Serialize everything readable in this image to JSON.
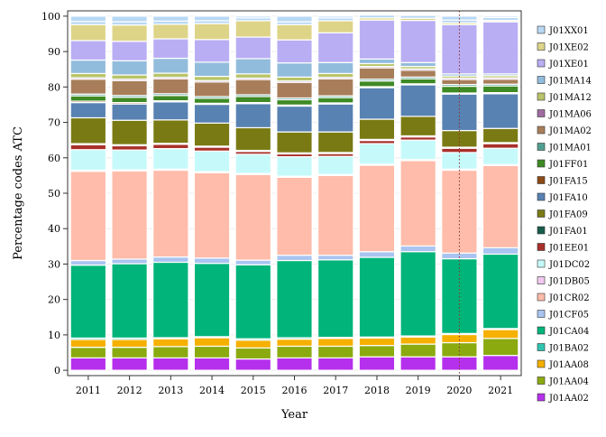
{
  "chart_data": {
    "type": "bar",
    "stacked": true,
    "xlabel": "Year",
    "ylabel": "Percentage codes ATC",
    "ylim": [
      0,
      100
    ],
    "yticks": [
      0,
      10,
      20,
      30,
      40,
      50,
      60,
      70,
      80,
      90,
      100
    ],
    "categories": [
      "2011",
      "2012",
      "2013",
      "2014",
      "2015",
      "2016",
      "2017",
      "2018",
      "2019",
      "2020",
      "2021"
    ],
    "reference_line": {
      "x": "2020",
      "style": "dotted",
      "color": "#8b2e2e"
    },
    "legend_position": "right",
    "series": [
      {
        "name": "J01AA02",
        "color": "#b530ec",
        "values": [
          3.5,
          3.5,
          3.5,
          3.5,
          3.2,
          3.5,
          3.5,
          3.8,
          3.8,
          3.8,
          4.2
        ]
      },
      {
        "name": "J01AA04",
        "color": "#8aaa10",
        "values": [
          3.0,
          3.0,
          3.2,
          3.3,
          3.1,
          3.3,
          3.3,
          3.2,
          3.6,
          4.0,
          4.8
        ]
      },
      {
        "name": "J01AA08",
        "color": "#f5b000",
        "values": [
          2.2,
          2.2,
          2.2,
          2.4,
          2.2,
          2.0,
          2.2,
          2.1,
          2.0,
          2.3,
          2.5
        ]
      },
      {
        "name": "J01BA02",
        "color": "#2ec4b0",
        "values": [
          0.4,
          0.4,
          0.3,
          0.3,
          0.4,
          0.4,
          0.3,
          0.3,
          0.3,
          0.3,
          0.3
        ]
      },
      {
        "name": "J01CA04",
        "color": "#00b47a",
        "values": [
          20.6,
          21.0,
          21.3,
          20.7,
          20.9,
          21.8,
          21.9,
          22.5,
          23.8,
          21.1,
          21.0
        ]
      },
      {
        "name": "J01CF05",
        "color": "#a9c4f0",
        "values": [
          1.3,
          1.3,
          1.5,
          1.5,
          1.3,
          1.5,
          1.3,
          1.6,
          1.6,
          1.6,
          1.8
        ]
      },
      {
        "name": "J01CR02",
        "color": "#ffbcaa",
        "values": [
          25.2,
          24.9,
          24.5,
          24.1,
          24.2,
          22.0,
          22.5,
          24.4,
          24.1,
          23.4,
          23.2
        ]
      },
      {
        "name": "J01DB05",
        "color": "#f0c8f0",
        "values": [
          0.3,
          0.3,
          0.3,
          0.3,
          0.3,
          0.3,
          0.3,
          0.3,
          0.3,
          0.3,
          0.3
        ]
      },
      {
        "name": "J01DC02",
        "color": "#c6fafa",
        "values": [
          5.8,
          5.6,
          5.8,
          5.8,
          5.4,
          5.5,
          5.1,
          5.8,
          5.5,
          4.7,
          4.6
        ]
      },
      {
        "name": "J01EE01",
        "color": "#a8302a",
        "values": [
          1.4,
          1.2,
          1.2,
          1.1,
          0.8,
          0.8,
          0.8,
          0.9,
          0.9,
          1.2,
          1.3
        ]
      },
      {
        "name": "J01FA01",
        "color": "#185c4c",
        "values": [
          0.3,
          0.3,
          0.3,
          0.3,
          0.3,
          0.3,
          0.3,
          0.3,
          0.3,
          0.3,
          0.3
        ]
      },
      {
        "name": "J01FA09",
        "color": "#7a7a14",
        "values": [
          7.3,
          6.9,
          6.6,
          6.5,
          6.4,
          5.9,
          5.8,
          5.7,
          5.5,
          4.7,
          4.0
        ]
      },
      {
        "name": "J01FA10",
        "color": "#5882b2",
        "values": [
          4.3,
          4.6,
          5.1,
          5.3,
          6.8,
          7.3,
          7.9,
          8.9,
          8.9,
          10.3,
          9.8
        ]
      },
      {
        "name": "J01FA15",
        "color": "#8c4a14",
        "values": [
          0.4,
          0.4,
          0.3,
          0.3,
          0.3,
          0.3,
          0.3,
          0.3,
          0.3,
          0.3,
          0.3
        ]
      },
      {
        "name": "J01FF01",
        "color": "#3e8a24",
        "values": [
          1.5,
          1.5,
          1.5,
          1.4,
          1.7,
          1.5,
          1.5,
          1.6,
          1.4,
          1.9,
          1.9
        ]
      },
      {
        "name": "J01MA01",
        "color": "#50a092",
        "values": [
          0.5,
          0.5,
          0.5,
          0.5,
          0.5,
          0.5,
          0.5,
          0.5,
          0.5,
          0.5,
          0.5
        ]
      },
      {
        "name": "J01MA02",
        "color": "#a87e5a",
        "values": [
          4.2,
          4.2,
          4.2,
          4.1,
          4.3,
          4.4,
          4.8,
          3.2,
          1.9,
          1.4,
          1.4
        ]
      },
      {
        "name": "J01MA06",
        "color": "#a06ca0",
        "values": [
          0.4,
          0.4,
          0.4,
          0.4,
          0.4,
          0.4,
          0.4,
          0.4,
          0.4,
          0.4,
          0.4
        ]
      },
      {
        "name": "J01MA12",
        "color": "#b8c468",
        "values": [
          1.2,
          1.2,
          1.2,
          1.2,
          1.2,
          1.1,
          1.1,
          0.8,
          0.7,
          0.6,
          0.6
        ]
      },
      {
        "name": "J01MA14",
        "color": "#92bcdc",
        "values": [
          3.8,
          4.0,
          4.2,
          4.0,
          4.3,
          4.0,
          3.1,
          1.3,
          1.1,
          0.6,
          0.5
        ]
      },
      {
        "name": "J01XE01",
        "color": "#b9aef4",
        "values": [
          5.5,
          5.5,
          5.5,
          6.4,
          6.1,
          6.5,
          8.4,
          11.0,
          11.9,
          13.9,
          14.7
        ]
      },
      {
        "name": "J01XE02",
        "color": "#ded488",
        "values": [
          4.5,
          4.6,
          4.1,
          4.5,
          4.6,
          4.3,
          3.4,
          0.6,
          0.6,
          0.5,
          0.4
        ]
      },
      {
        "name": "J01XX01",
        "color": "#b8d8f4",
        "values": [
          0.9,
          0.9,
          0.9,
          0.8,
          0.8,
          0.8,
          0.8,
          0.8,
          0.8,
          0.8,
          0.8
        ]
      }
    ]
  }
}
